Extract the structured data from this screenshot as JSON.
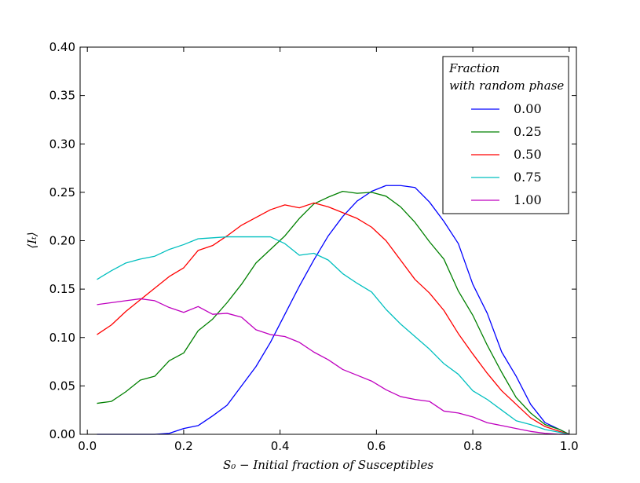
{
  "chart_data": {
    "type": "line",
    "title": "",
    "xlabel": "S₀ − Initial fraction of Susceptibles",
    "ylabel": "⟨Iₜ⟩",
    "xlim": [
      -0.015,
      1.015
    ],
    "ylim": [
      0.0,
      0.4
    ],
    "xticks": [
      0.0,
      0.2,
      0.4,
      0.6,
      0.8,
      1.0
    ],
    "xtick_labels": [
      "0.0",
      "0.2",
      "0.4",
      "0.6",
      "0.8",
      "1.0"
    ],
    "yticks": [
      0.0,
      0.05,
      0.1,
      0.15,
      0.2,
      0.25,
      0.3,
      0.35,
      0.4
    ],
    "ytick_labels": [
      "0.00",
      "0.05",
      "0.10",
      "0.15",
      "0.20",
      "0.25",
      "0.30",
      "0.35",
      "0.40"
    ],
    "grid": false,
    "legend": {
      "title_lines": [
        "Fraction",
        "with random phase"
      ],
      "placement": "top-right"
    },
    "x": [
      0.02,
      0.05,
      0.08,
      0.11,
      0.14,
      0.17,
      0.2,
      0.23,
      0.26,
      0.29,
      0.32,
      0.35,
      0.38,
      0.41,
      0.44,
      0.47,
      0.5,
      0.53,
      0.56,
      0.59,
      0.62,
      0.65,
      0.68,
      0.71,
      0.74,
      0.77,
      0.8,
      0.83,
      0.86,
      0.89,
      0.92,
      0.95,
      0.98,
      1.0
    ],
    "series": [
      {
        "name": "0.00",
        "color": "#0000ff",
        "values": [
          0.0,
          0.0,
          0.0,
          0.0,
          0.0,
          0.001,
          0.006,
          0.009,
          0.019,
          0.03,
          0.05,
          0.07,
          0.095,
          0.124,
          0.153,
          0.18,
          0.205,
          0.225,
          0.241,
          0.251,
          0.257,
          0.257,
          0.255,
          0.24,
          0.22,
          0.197,
          0.155,
          0.125,
          0.085,
          0.06,
          0.031,
          0.012,
          0.005,
          0.0
        ]
      },
      {
        "name": "0.25",
        "color": "#008000",
        "values": [
          0.032,
          0.034,
          0.044,
          0.056,
          0.06,
          0.076,
          0.084,
          0.107,
          0.119,
          0.136,
          0.155,
          0.177,
          0.191,
          0.205,
          0.223,
          0.238,
          0.245,
          0.251,
          0.249,
          0.25,
          0.246,
          0.235,
          0.219,
          0.199,
          0.181,
          0.148,
          0.123,
          0.092,
          0.064,
          0.038,
          0.022,
          0.01,
          0.005,
          0.0
        ]
      },
      {
        "name": "0.50",
        "color": "#ff0000",
        "values": [
          0.103,
          0.113,
          0.127,
          0.139,
          0.151,
          0.163,
          0.172,
          0.19,
          0.195,
          0.205,
          0.216,
          0.224,
          0.232,
          0.237,
          0.234,
          0.239,
          0.235,
          0.229,
          0.223,
          0.214,
          0.2,
          0.18,
          0.16,
          0.146,
          0.128,
          0.104,
          0.083,
          0.063,
          0.045,
          0.031,
          0.017,
          0.008,
          0.003,
          0.0
        ]
      },
      {
        "name": "0.75",
        "color": "#00bfbf",
        "values": [
          0.16,
          0.169,
          0.177,
          0.181,
          0.184,
          0.191,
          0.196,
          0.202,
          0.203,
          0.204,
          0.204,
          0.204,
          0.204,
          0.197,
          0.185,
          0.187,
          0.18,
          0.166,
          0.156,
          0.147,
          0.129,
          0.114,
          0.101,
          0.088,
          0.073,
          0.062,
          0.045,
          0.036,
          0.025,
          0.014,
          0.01,
          0.005,
          0.002,
          0.0
        ]
      },
      {
        "name": "1.00",
        "color": "#bf00bf",
        "values": [
          0.134,
          0.136,
          0.138,
          0.14,
          0.138,
          0.131,
          0.126,
          0.132,
          0.124,
          0.125,
          0.121,
          0.108,
          0.103,
          0.101,
          0.095,
          0.085,
          0.077,
          0.067,
          0.061,
          0.055,
          0.046,
          0.039,
          0.036,
          0.034,
          0.024,
          0.022,
          0.018,
          0.012,
          0.009,
          0.006,
          0.003,
          0.001,
          0.0,
          0.0
        ]
      }
    ]
  }
}
